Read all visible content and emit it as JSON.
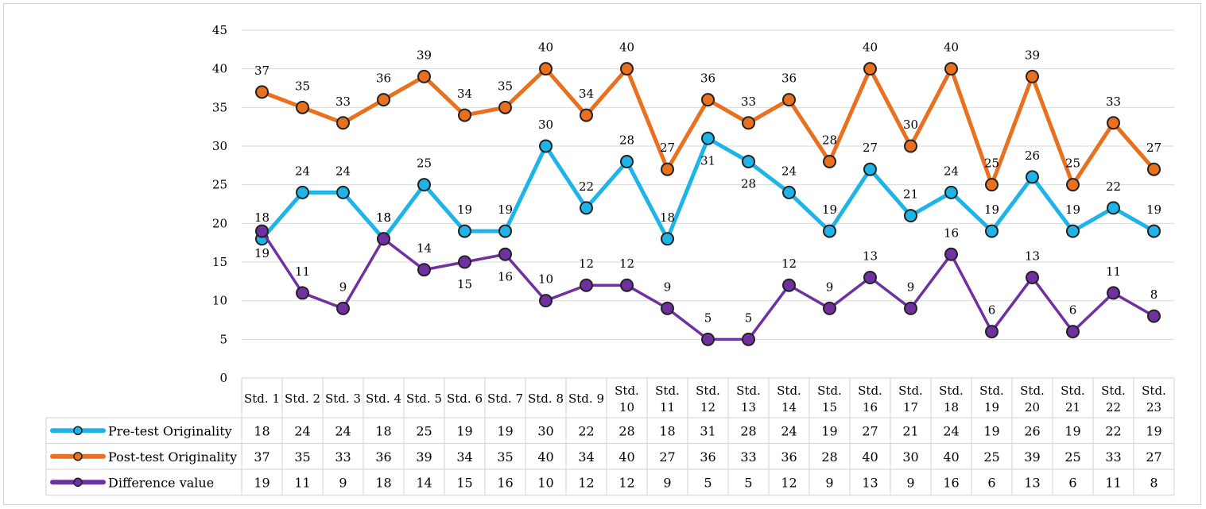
{
  "chart_data": {
    "type": "line",
    "categories": [
      [
        "Std. 1"
      ],
      [
        "Std. 2"
      ],
      [
        "Std. 3"
      ],
      [
        "Std. 4"
      ],
      [
        "Std. 5"
      ],
      [
        "Std. 6"
      ],
      [
        "Std. 7"
      ],
      [
        "Std. 8"
      ],
      [
        "Std. 9"
      ],
      [
        "Std.",
        "10"
      ],
      [
        "Std.",
        "11"
      ],
      [
        "Std.",
        "12"
      ],
      [
        "Std.",
        "13"
      ],
      [
        "Std.",
        "14"
      ],
      [
        "Std.",
        "15"
      ],
      [
        "Std.",
        "16"
      ],
      [
        "Std.",
        "17"
      ],
      [
        "Std.",
        "18"
      ],
      [
        "Std.",
        "19"
      ],
      [
        "Std.",
        "20"
      ],
      [
        "Std.",
        "21"
      ],
      [
        "Std.",
        "22"
      ],
      [
        "Std.",
        "23"
      ]
    ],
    "series": [
      {
        "name": "Pre-test Originality",
        "color": "#1fb4e8",
        "values": [
          18,
          24,
          24,
          18,
          25,
          19,
          19,
          30,
          22,
          28,
          18,
          31,
          28,
          24,
          19,
          27,
          21,
          24,
          19,
          26,
          19,
          22,
          19
        ]
      },
      {
        "name": "Post-test Originality",
        "color": "#e8701f",
        "values": [
          37,
          35,
          33,
          36,
          39,
          34,
          35,
          40,
          34,
          40,
          27,
          36,
          33,
          36,
          28,
          40,
          30,
          40,
          25,
          39,
          25,
          33,
          27
        ]
      },
      {
        "name": "Difference value",
        "color": "#7030a0",
        "values": [
          19,
          11,
          9,
          18,
          14,
          15,
          16,
          10,
          12,
          12,
          9,
          5,
          5,
          12,
          9,
          13,
          9,
          16,
          6,
          13,
          6,
          11,
          8
        ]
      }
    ],
    "ylim": [
      0,
      45
    ],
    "yticks": [
      0,
      5,
      10,
      15,
      20,
      25,
      30,
      35,
      40,
      45
    ],
    "grid": true,
    "legend": "data-table"
  }
}
